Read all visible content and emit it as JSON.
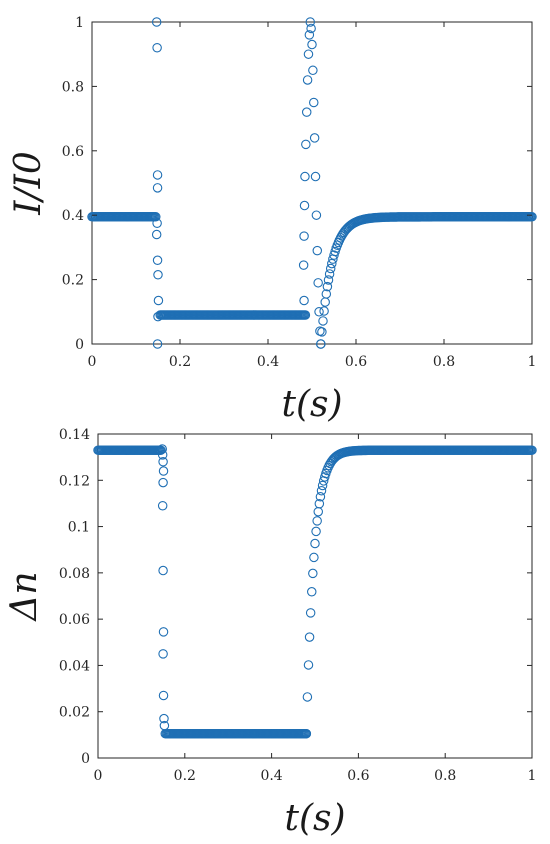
{
  "chart_data": [
    {
      "type": "scatter",
      "xlabel": "t(s)",
      "ylabel": "I/I0",
      "xlim": [
        0,
        1
      ],
      "ylim": [
        0,
        1
      ],
      "xticks": [
        "0",
        "0.2",
        "0.4",
        "0.6",
        "0.8",
        "1"
      ],
      "yticks": [
        "0",
        "0.2",
        "0.4",
        "0.6",
        "0.8",
        "1"
      ],
      "grid": false,
      "marker": "open-circle",
      "series_color": "#1f6fb4",
      "segments": [
        {
          "x_start": 0.0,
          "x_end": 0.145,
          "y_level": 0.395
        },
        {
          "x_start": 0.155,
          "x_end": 0.485,
          "y_level": 0.09
        },
        {
          "x_start": 0.52,
          "x_end": 1.0,
          "recovery": {
            "from": 0.0,
            "to": 0.395,
            "tau_s": 0.025
          }
        }
      ],
      "transition_points": [
        [
          0.147,
          1.0
        ],
        [
          0.148,
          0.92
        ],
        [
          0.149,
          0.525
        ],
        [
          0.149,
          0.485
        ],
        [
          0.148,
          0.375
        ],
        [
          0.147,
          0.34
        ],
        [
          0.149,
          0.26
        ],
        [
          0.15,
          0.215
        ],
        [
          0.151,
          0.135
        ],
        [
          0.15,
          0.085
        ],
        [
          0.149,
          0.0
        ],
        [
          0.482,
          0.135
        ],
        [
          0.481,
          0.245
        ],
        [
          0.482,
          0.335
        ],
        [
          0.483,
          0.43
        ],
        [
          0.484,
          0.52
        ],
        [
          0.486,
          0.62
        ],
        [
          0.488,
          0.72
        ],
        [
          0.49,
          0.82
        ],
        [
          0.492,
          0.9
        ],
        [
          0.494,
          0.96
        ],
        [
          0.496,
          1.0
        ],
        [
          0.498,
          0.98
        ],
        [
          0.5,
          0.93
        ],
        [
          0.502,
          0.85
        ],
        [
          0.504,
          0.75
        ],
        [
          0.506,
          0.64
        ],
        [
          0.508,
          0.52
        ],
        [
          0.51,
          0.4
        ],
        [
          0.512,
          0.29
        ],
        [
          0.514,
          0.19
        ],
        [
          0.516,
          0.1
        ],
        [
          0.518,
          0.04
        ],
        [
          0.52,
          0.0
        ]
      ]
    },
    {
      "type": "scatter",
      "xlabel": "t(s)",
      "ylabel": "Δn",
      "xlim": [
        0,
        1
      ],
      "ylim": [
        0,
        0.14
      ],
      "xticks": [
        "0",
        "0.2",
        "0.4",
        "0.6",
        "0.8",
        "1"
      ],
      "yticks": [
        "0",
        "0.02",
        "0.04",
        "0.06",
        "0.08",
        "0.1",
        "0.12",
        "0.14"
      ],
      "grid": false,
      "marker": "open-circle",
      "series_color": "#1f6fb4",
      "segments": [
        {
          "x_start": 0.0,
          "x_end": 0.145,
          "y_level": 0.133
        },
        {
          "x_start": 0.155,
          "x_end": 0.48,
          "y_level": 0.0105
        },
        {
          "x_start": 0.48,
          "x_end": 1.0,
          "recovery": {
            "from": 0.0105,
            "to": 0.133,
            "tau_s": 0.018
          }
        }
      ],
      "transition_points": [
        [
          0.148,
          0.1335
        ],
        [
          0.149,
          0.131
        ],
        [
          0.15,
          0.128
        ],
        [
          0.151,
          0.124
        ],
        [
          0.15,
          0.119
        ],
        [
          0.149,
          0.109
        ],
        [
          0.15,
          0.081
        ],
        [
          0.151,
          0.0545
        ],
        [
          0.15,
          0.045
        ],
        [
          0.151,
          0.027
        ],
        [
          0.152,
          0.017
        ],
        [
          0.153,
          0.014
        ]
      ]
    }
  ]
}
